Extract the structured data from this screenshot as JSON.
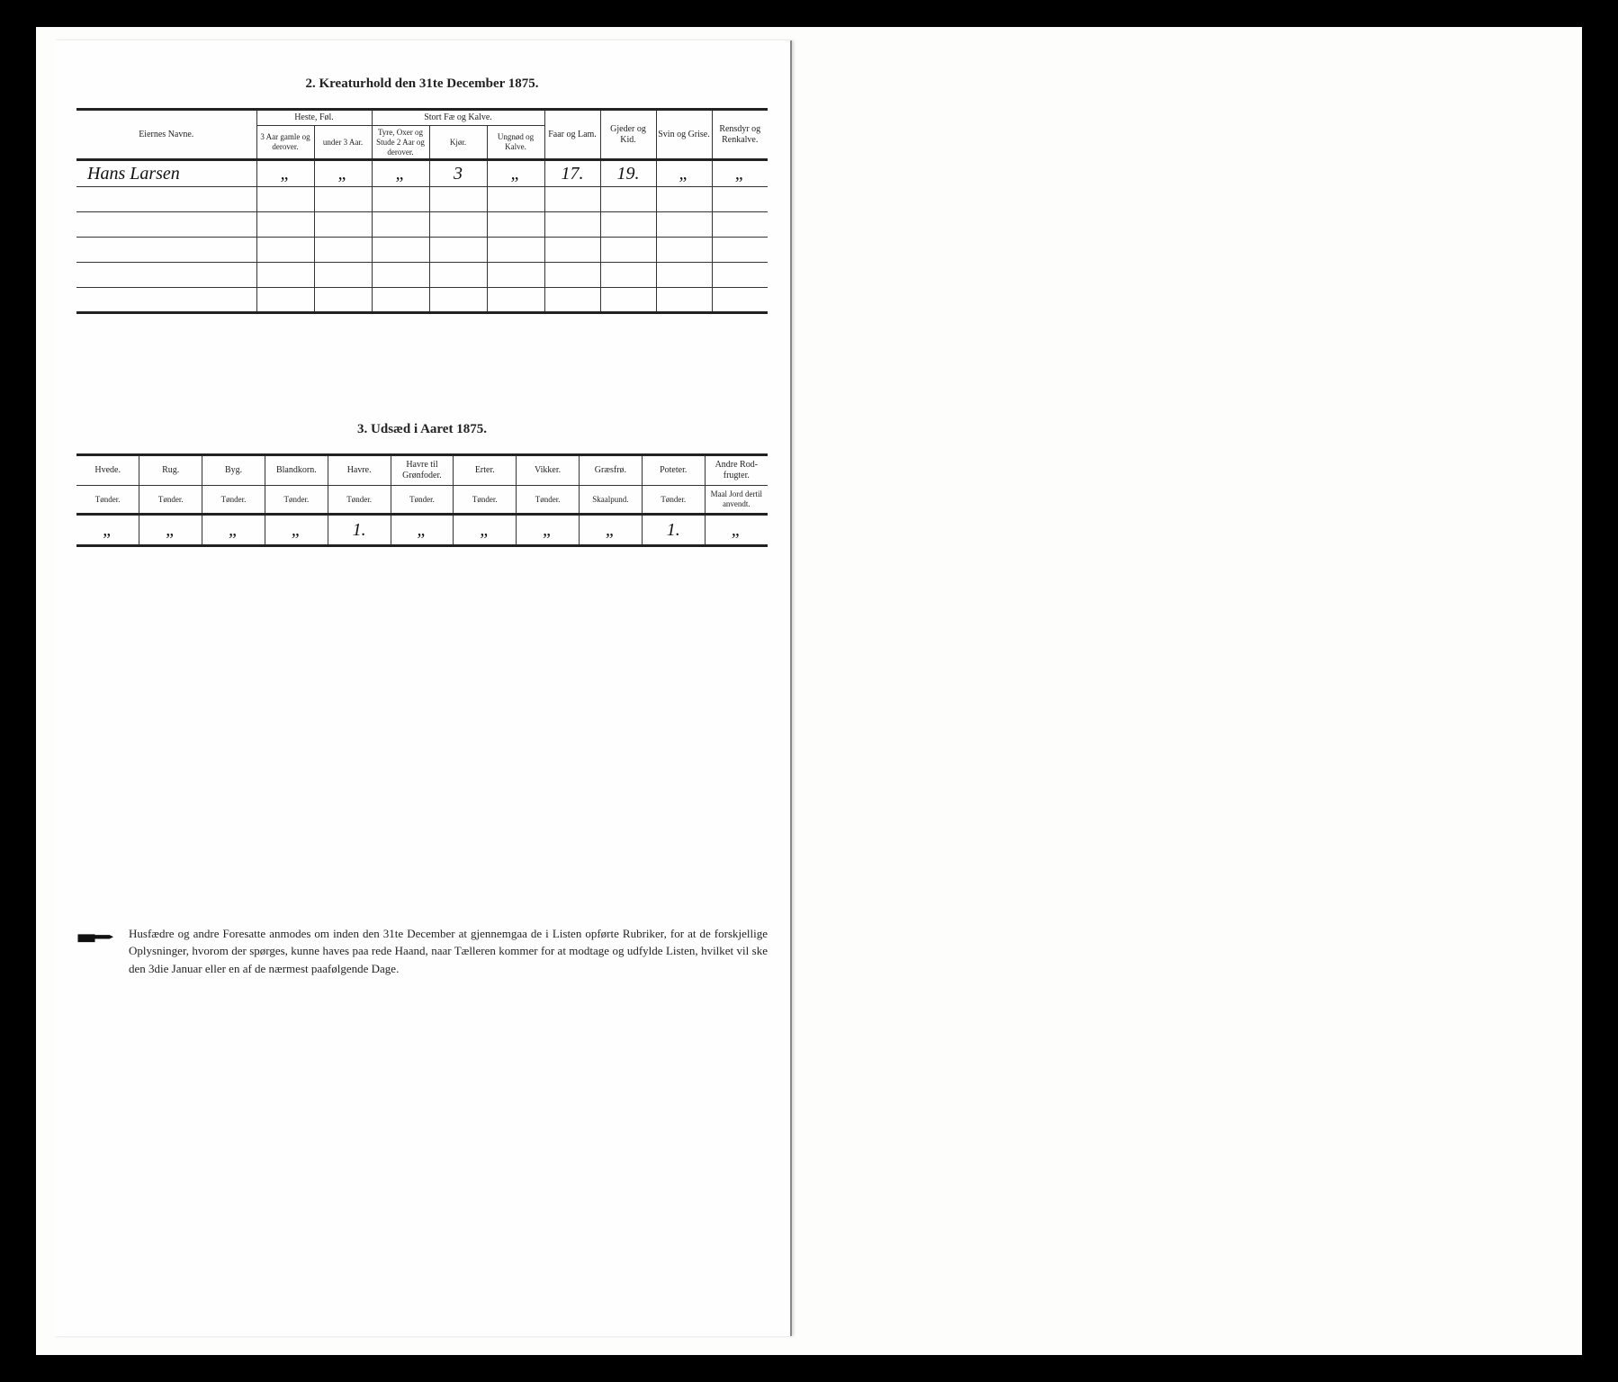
{
  "section2": {
    "title": "2.  Kreaturhold den 31te December 1875.",
    "headers": {
      "owner": "Eiernes Navne.",
      "group1": "Heste, Føl.",
      "group1_a": "3 Aar gamle og derover.",
      "group1_b": "under 3 Aar.",
      "group2": "Stort Fæ og Kalve.",
      "group2_a": "Tyre, Oxer og Stude 2 Aar og derover.",
      "group2_b": "Kjør.",
      "group2_c": "Ungnød og Kalve.",
      "col_faar": "Faar og Lam.",
      "col_gjeder": "Gjeder og Kid.",
      "col_svin": "Svin og Grise.",
      "col_ren": "Rensdyr og Renkalve."
    },
    "row": {
      "name": "Hans Larsen",
      "h1": "„",
      "h2": "„",
      "f1": "„",
      "f2": "3",
      "f3": "„",
      "faar": "17.",
      "gjeder": "19.",
      "svin": "„",
      "ren": "„"
    }
  },
  "section3": {
    "title": "3.  Udsæd i Aaret 1875.",
    "cols": [
      {
        "label": "Hvede.",
        "unit": "Tønder."
      },
      {
        "label": "Rug.",
        "unit": "Tønder."
      },
      {
        "label": "Byg.",
        "unit": "Tønder."
      },
      {
        "label": "Blandkorn.",
        "unit": "Tønder."
      },
      {
        "label": "Havre.",
        "unit": "Tønder."
      },
      {
        "label": "Havre til Grønfoder.",
        "unit": "Tønder."
      },
      {
        "label": "Erter.",
        "unit": "Tønder."
      },
      {
        "label": "Vikker.",
        "unit": "Tønder."
      },
      {
        "label": "Græsfrø.",
        "unit": "Skaalpund."
      },
      {
        "label": "Poteter.",
        "unit": "Tønder."
      },
      {
        "label": "Andre Rod-frugter.",
        "unit": "Maal Jord dertil anvendt."
      }
    ],
    "values": [
      "„",
      "„",
      "„",
      "„",
      "1.",
      "„",
      "„",
      "„",
      "„",
      "1.",
      "„"
    ]
  },
  "footer": "Husfædre og andre Foresatte anmodes om inden den 31te December at gjennemgaa de i Listen opførte Rubriker, for at de forskjellige Oplysninger, hvorom der spørges, kunne haves paa rede Haand, naar Tælleren kommer for at modtage og udfylde Listen, hvilket vil ske den 3die Januar eller en af de nærmest paafølgende Dage."
}
